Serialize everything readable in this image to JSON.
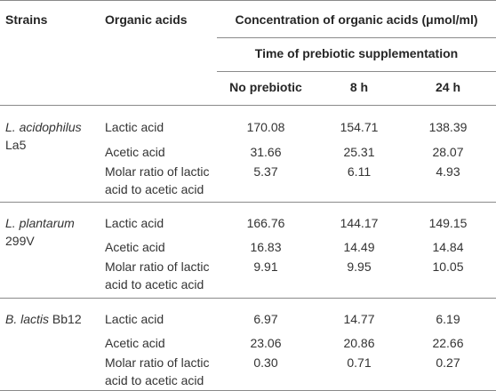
{
  "header": {
    "strains": "Strains",
    "organic_acids": "Organic acids",
    "concentration": "Concentration of organic acids (μmol/ml)",
    "time": "Time of prebiotic supplementation",
    "columns": [
      "No prebiotic",
      "8 h",
      "24 h"
    ]
  },
  "groups": [
    {
      "strain_italic": "L. acidophilus",
      "strain_rest": "La5",
      "rows": [
        {
          "acid": "Lactic acid",
          "values": [
            "170.08",
            "154.71",
            "138.39"
          ]
        },
        {
          "acid": "Acetic acid",
          "values": [
            "31.66",
            "25.31",
            "28.07"
          ]
        },
        {
          "acid_line1": "Molar ratio of lactic",
          "acid_line2": "acid to acetic acid",
          "values": [
            "5.37",
            "6.11",
            "4.93"
          ]
        }
      ]
    },
    {
      "strain_italic": "L. plantarum",
      "strain_rest": "299V",
      "rows": [
        {
          "acid": "Lactic acid",
          "values": [
            "166.76",
            "144.17",
            "149.15"
          ]
        },
        {
          "acid": "Acetic acid",
          "values": [
            "16.83",
            "14.49",
            "14.84"
          ]
        },
        {
          "acid_line1": "Molar ratio of lactic",
          "acid_line2": "acid to acetic acid",
          "values": [
            "9.91",
            "9.95",
            "10.05"
          ]
        }
      ]
    },
    {
      "strain_italic": "B. lactis",
      "strain_rest": "Bb12",
      "rows": [
        {
          "acid": "Lactic acid",
          "values": [
            "6.97",
            "14.77",
            "6.19"
          ]
        },
        {
          "acid": "Acetic acid",
          "values": [
            "23.06",
            "20.86",
            "22.66"
          ]
        },
        {
          "acid_line1": "Molar ratio of lactic",
          "acid_line2": "acid to acetic acid",
          "values": [
            "0.30",
            "0.71",
            "0.27"
          ]
        }
      ]
    }
  ]
}
